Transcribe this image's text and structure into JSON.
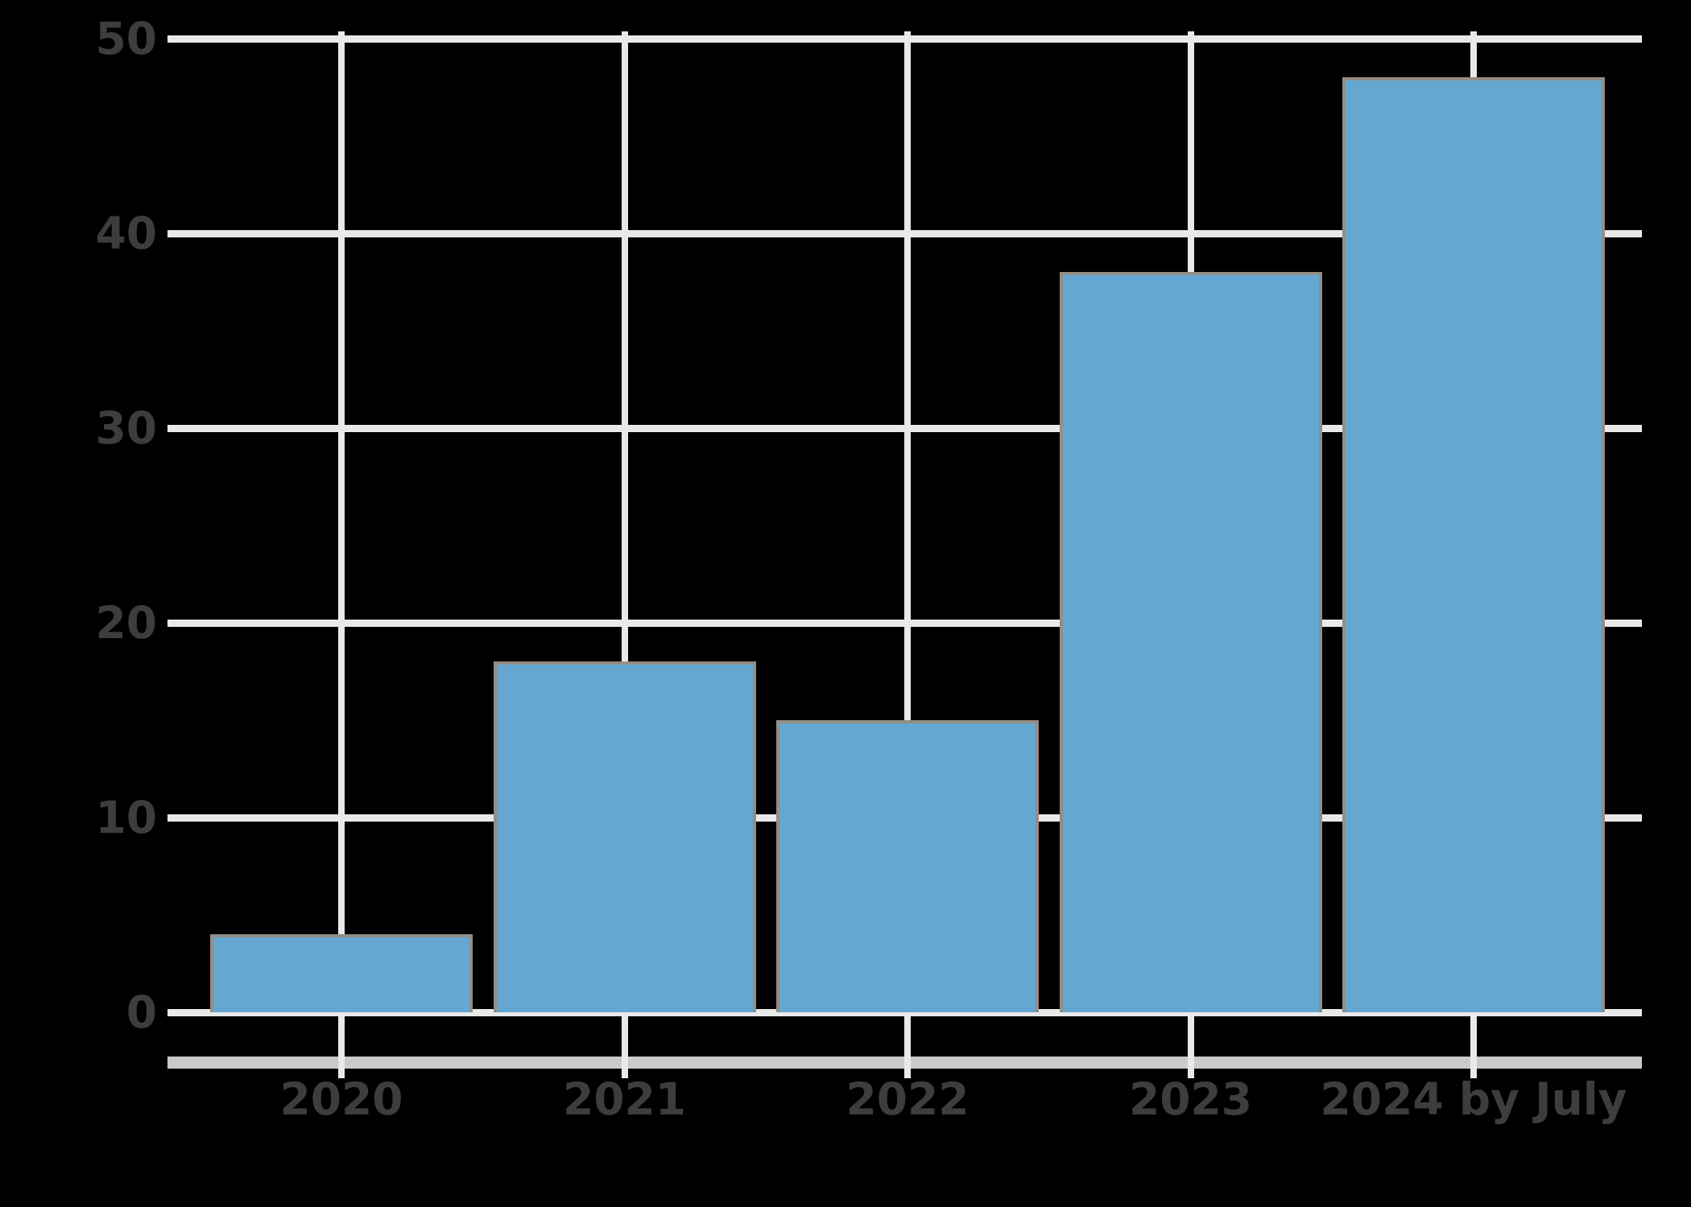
{
  "chart_data": {
    "type": "bar",
    "categories": [
      "2020",
      "2021",
      "2022",
      "2023",
      "2024 by July"
    ],
    "values": [
      4,
      18,
      15,
      38,
      48
    ],
    "title": "",
    "xlabel": "",
    "ylabel": "",
    "ylim": [
      0,
      50
    ],
    "yticks": [
      0,
      10,
      20,
      30,
      40,
      50
    ],
    "grid": true,
    "legend": "none",
    "colors": {
      "background": "#000000",
      "bar_fill": "#64a8d2",
      "bar_edge": "#938d85",
      "gridline": "#e9e9e9",
      "axis_spine": "#cacaca",
      "tick_label": "#3d3d3d"
    }
  }
}
